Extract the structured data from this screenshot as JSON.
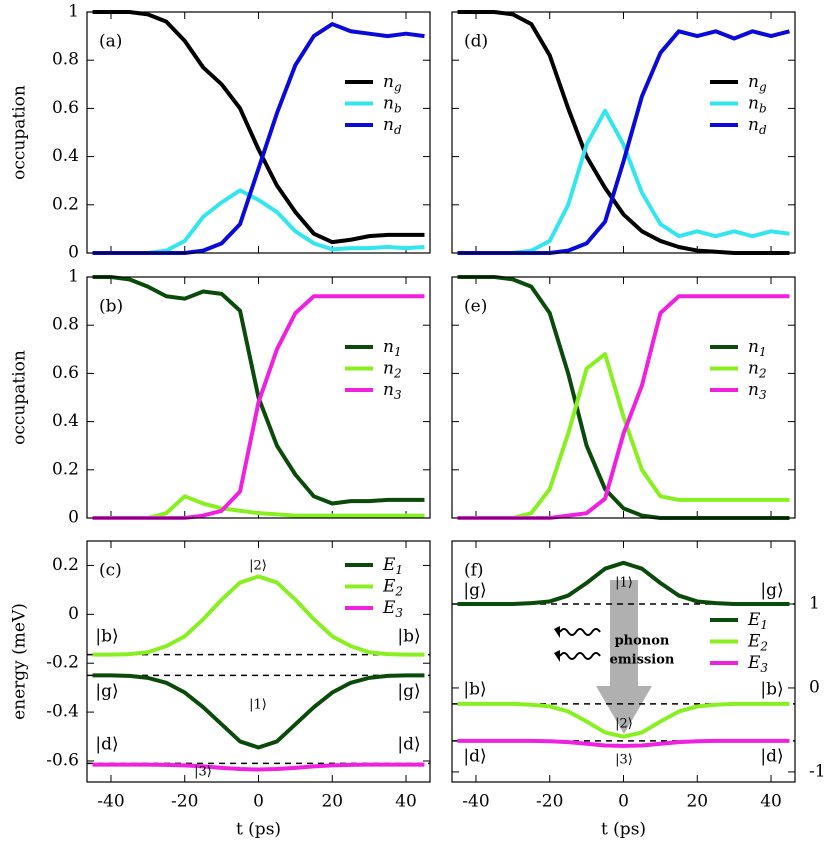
{
  "chart_data": [
    {
      "type": "line",
      "label": "(a)",
      "ylabel": "occupation",
      "x": [
        -45,
        -40,
        -35,
        -30,
        -25,
        -20,
        -15,
        -10,
        -5,
        0,
        5,
        10,
        15,
        20,
        25,
        30,
        35,
        40,
        45
      ],
      "xlim": [
        -46.5,
        46.5
      ],
      "xticks": [
        -40,
        -20,
        0,
        20,
        40
      ],
      "xtick_labels": false,
      "ylim": [
        0,
        1
      ],
      "yticks": [
        0,
        0.2,
        0.4,
        0.6,
        0.8,
        1
      ],
      "ytick_labels": true,
      "series": [
        {
          "name": "n",
          "sub": "g",
          "color": "#000000",
          "values": [
            1,
            1,
            1,
            0.99,
            0.96,
            0.88,
            0.77,
            0.7,
            0.6,
            0.43,
            0.28,
            0.17,
            0.08,
            0.045,
            0.055,
            0.07,
            0.075,
            0.075,
            0.075
          ]
        },
        {
          "name": "n",
          "sub": "b",
          "color": "#33e6ee",
          "values": [
            0,
            0,
            0,
            0,
            0.01,
            0.05,
            0.15,
            0.21,
            0.26,
            0.22,
            0.17,
            0.09,
            0.04,
            0.015,
            0.02,
            0.02,
            0.025,
            0.02,
            0.025
          ]
        },
        {
          "name": "n",
          "sub": "d",
          "color": "#0a0adb",
          "values": [
            0,
            0,
            0,
            0,
            0,
            0,
            0.01,
            0.04,
            0.12,
            0.35,
            0.58,
            0.78,
            0.9,
            0.95,
            0.92,
            0.91,
            0.9,
            0.91,
            0.9
          ]
        }
      ]
    },
    {
      "type": "line",
      "label": "(b)",
      "ylabel": "occupation",
      "x": [
        -45,
        -40,
        -35,
        -30,
        -25,
        -20,
        -15,
        -10,
        -5,
        0,
        5,
        10,
        15,
        20,
        25,
        30,
        35,
        40,
        45
      ],
      "xlim": [
        -46.5,
        46.5
      ],
      "xticks": [
        -40,
        -20,
        0,
        20,
        40
      ],
      "xtick_labels": false,
      "ylim": [
        0,
        1
      ],
      "yticks": [
        0,
        0.2,
        0.4,
        0.6,
        0.8,
        1
      ],
      "ytick_labels": true,
      "series": [
        {
          "name": "n",
          "sub": "1",
          "color": "#0a4a0a",
          "values": [
            1,
            1,
            0.99,
            0.96,
            0.92,
            0.91,
            0.94,
            0.93,
            0.86,
            0.5,
            0.3,
            0.18,
            0.09,
            0.06,
            0.07,
            0.07,
            0.075,
            0.075,
            0.075
          ]
        },
        {
          "name": "n",
          "sub": "2",
          "color": "#88f020",
          "values": [
            0,
            0,
            0,
            0,
            0.02,
            0.09,
            0.06,
            0.04,
            0.03,
            0.02,
            0.015,
            0.01,
            0.01,
            0.01,
            0.01,
            0.01,
            0.01,
            0.01,
            0.01
          ]
        },
        {
          "name": "n",
          "sub": "3",
          "color": "#f020e0",
          "values": [
            0,
            0,
            0,
            0,
            0,
            0,
            0.01,
            0.03,
            0.11,
            0.48,
            0.7,
            0.85,
            0.92,
            0.92,
            0.92,
            0.92,
            0.92,
            0.92,
            0.92
          ]
        }
      ]
    },
    {
      "type": "line",
      "label": "(c)",
      "ylabel": "energy (meV)",
      "xlabel": "t (ps)",
      "x": [
        -45,
        -40,
        -35,
        -30,
        -25,
        -20,
        -15,
        -10,
        -5,
        0,
        5,
        10,
        15,
        20,
        25,
        30,
        35,
        40,
        45
      ],
      "xlim": [
        -46.5,
        46.5
      ],
      "xticks": [
        -40,
        -20,
        0,
        20,
        40
      ],
      "xtick_labels": true,
      "ylim": [
        -0.686,
        0.3
      ],
      "yticks": [
        -0.6,
        -0.4,
        -0.2,
        0,
        0.2
      ],
      "ytick_labels": true,
      "hlines": [
        -0.165,
        -0.25,
        -0.61
      ],
      "annotations": [
        "|b⟩",
        "|b⟩",
        "|g⟩",
        "|g⟩",
        "|d⟩",
        "|d⟩",
        "|2⟩",
        "|1⟩",
        "|3⟩"
      ],
      "series": [
        {
          "name": "E",
          "sub": "1",
          "color": "#0a4a0a",
          "values": [
            -0.25,
            -0.25,
            -0.252,
            -0.26,
            -0.28,
            -0.32,
            -0.38,
            -0.45,
            -0.52,
            -0.545,
            -0.52,
            -0.45,
            -0.38,
            -0.32,
            -0.28,
            -0.26,
            -0.252,
            -0.25,
            -0.25
          ]
        },
        {
          "name": "E",
          "sub": "2",
          "color": "#88f020",
          "values": [
            -0.165,
            -0.165,
            -0.163,
            -0.155,
            -0.13,
            -0.09,
            -0.02,
            0.06,
            0.13,
            0.155,
            0.13,
            0.06,
            -0.02,
            -0.09,
            -0.13,
            -0.155,
            -0.163,
            -0.165,
            -0.165
          ]
        },
        {
          "name": "E",
          "sub": "3",
          "color": "#f020e0",
          "values": [
            -0.615,
            -0.615,
            -0.615,
            -0.615,
            -0.616,
            -0.618,
            -0.622,
            -0.628,
            -0.633,
            -0.635,
            -0.633,
            -0.628,
            -0.622,
            -0.618,
            -0.616,
            -0.615,
            -0.615,
            -0.615,
            -0.615
          ]
        }
      ]
    },
    {
      "type": "line",
      "label": "(d)",
      "x": [
        -45,
        -40,
        -35,
        -30,
        -25,
        -20,
        -15,
        -10,
        -5,
        0,
        5,
        10,
        15,
        20,
        25,
        30,
        35,
        40,
        45
      ],
      "xlim": [
        -46.5,
        46.5
      ],
      "xticks": [
        -40,
        -20,
        0,
        20,
        40
      ],
      "xtick_labels": false,
      "ylim": [
        0,
        1
      ],
      "yticks": [
        0,
        0.2,
        0.4,
        0.6,
        0.8,
        1
      ],
      "ytick_labels": false,
      "series": [
        {
          "name": "n",
          "sub": "g",
          "color": "#000000",
          "values": [
            1,
            1,
            1,
            0.99,
            0.95,
            0.82,
            0.6,
            0.4,
            0.27,
            0.16,
            0.09,
            0.05,
            0.025,
            0.01,
            0.005,
            0,
            0,
            0,
            0
          ]
        },
        {
          "name": "n",
          "sub": "b",
          "color": "#33e6ee",
          "values": [
            0,
            0,
            0,
            0,
            0.01,
            0.05,
            0.2,
            0.45,
            0.59,
            0.45,
            0.25,
            0.12,
            0.07,
            0.09,
            0.07,
            0.09,
            0.07,
            0.09,
            0.08
          ]
        },
        {
          "name": "n",
          "sub": "d",
          "color": "#0a0adb",
          "values": [
            0,
            0,
            0,
            0,
            0,
            0,
            0.01,
            0.04,
            0.13,
            0.38,
            0.65,
            0.83,
            0.92,
            0.9,
            0.92,
            0.89,
            0.92,
            0.9,
            0.92
          ]
        }
      ]
    },
    {
      "type": "line",
      "label": "(e)",
      "x": [
        -45,
        -40,
        -35,
        -30,
        -25,
        -20,
        -15,
        -10,
        -5,
        0,
        5,
        10,
        15,
        20,
        25,
        30,
        35,
        40,
        45
      ],
      "xlim": [
        -46.5,
        46.5
      ],
      "xticks": [
        -40,
        -20,
        0,
        20,
        40
      ],
      "xtick_labels": false,
      "ylim": [
        0,
        1
      ],
      "yticks": [
        0,
        0.2,
        0.4,
        0.6,
        0.8,
        1
      ],
      "ytick_labels": false,
      "series": [
        {
          "name": "n",
          "sub": "1",
          "color": "#0a4a0a",
          "values": [
            1,
            1,
            1,
            0.99,
            0.96,
            0.85,
            0.6,
            0.3,
            0.12,
            0.04,
            0.01,
            0,
            0,
            0,
            0,
            0,
            0,
            0,
            0
          ]
        },
        {
          "name": "n",
          "sub": "2",
          "color": "#88f020",
          "values": [
            0,
            0,
            0,
            0,
            0.02,
            0.12,
            0.35,
            0.62,
            0.68,
            0.42,
            0.2,
            0.09,
            0.075,
            0.075,
            0.075,
            0.075,
            0.075,
            0.075,
            0.075
          ]
        },
        {
          "name": "n",
          "sub": "3",
          "color": "#f020e0",
          "values": [
            0,
            0,
            0,
            0,
            0,
            0,
            0.01,
            0.02,
            0.08,
            0.35,
            0.55,
            0.85,
            0.92,
            0.92,
            0.92,
            0.92,
            0.92,
            0.92,
            0.92
          ]
        }
      ]
    },
    {
      "type": "line",
      "label": "(f)",
      "xlabel": "t (ps)",
      "x": [
        -45,
        -40,
        -35,
        -30,
        -25,
        -20,
        -15,
        -10,
        -5,
        0,
        5,
        10,
        15,
        20,
        25,
        30,
        35,
        40,
        45
      ],
      "xlim": [
        -46.5,
        46.5
      ],
      "xticks": [
        -40,
        -20,
        0,
        20,
        40
      ],
      "xtick_labels": true,
      "ylim": [
        -1.12,
        1.75
      ],
      "yticks": [
        -1,
        0,
        1
      ],
      "ytick_labels": true,
      "ytick_side": "right",
      "hlines": [
        1,
        -0.19,
        -0.63
      ],
      "annotations": [
        "|g⟩",
        "|g⟩",
        "|b⟩",
        "|b⟩",
        "|d⟩",
        "|d⟩",
        "|1⟩",
        "|2⟩",
        "|3⟩",
        "phonon",
        "emission"
      ],
      "series": [
        {
          "name": "E",
          "sub": "1",
          "color": "#0a4a0a",
          "values": [
            1,
            1,
            1,
            1,
            1.01,
            1.03,
            1.1,
            1.25,
            1.42,
            1.49,
            1.42,
            1.25,
            1.1,
            1.03,
            1.01,
            1,
            1,
            1,
            1
          ]
        },
        {
          "name": "E",
          "sub": "2",
          "color": "#88f020",
          "values": [
            -0.19,
            -0.19,
            -0.19,
            -0.19,
            -0.2,
            -0.22,
            -0.28,
            -0.4,
            -0.53,
            -0.58,
            -0.53,
            -0.4,
            -0.28,
            -0.22,
            -0.2,
            -0.19,
            -0.19,
            -0.19,
            -0.19
          ]
        },
        {
          "name": "E",
          "sub": "3",
          "color": "#f020e0",
          "values": [
            -0.63,
            -0.63,
            -0.63,
            -0.63,
            -0.63,
            -0.635,
            -0.645,
            -0.665,
            -0.685,
            -0.69,
            -0.685,
            -0.665,
            -0.645,
            -0.635,
            -0.63,
            -0.63,
            -0.63,
            -0.63,
            -0.63
          ]
        }
      ]
    }
  ]
}
